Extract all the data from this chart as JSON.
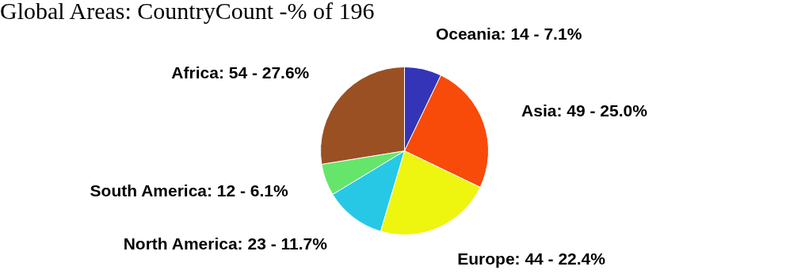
{
  "chart_data": {
    "type": "pie",
    "title": "Global Areas: CountryCount -% of 196",
    "categories": [
      "Oceania",
      "Asia",
      "Europe",
      "North America",
      "South America",
      "Africa"
    ],
    "values": [
      14,
      49,
      44,
      23,
      12,
      54
    ],
    "colors": [
      "#3434b8",
      "#f84a08",
      "#eef50f",
      "#27c8e6",
      "#66e56b",
      "#9a5023"
    ],
    "value_labels": [
      "14 - 7.1%",
      "49 - 25.0%",
      "44 - 22.4%",
      "23 - 11.7%",
      "12 - 6.1%",
      "54 - 27.6%"
    ],
    "legend": false
  }
}
